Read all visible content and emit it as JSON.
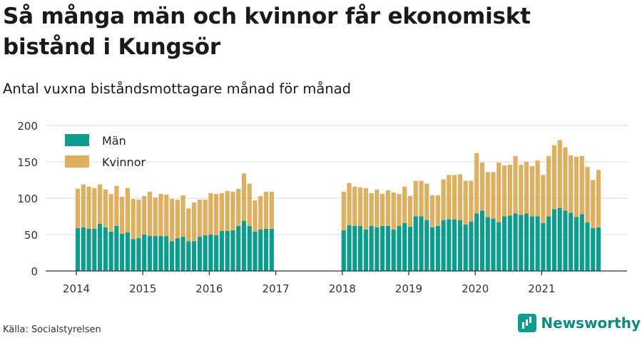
{
  "header": {
    "title": "Så många män och kvinnor får ekonomiskt bistånd i Kungsör",
    "subtitle": "Antal vuxna biståndsmottagare månad för månad"
  },
  "footer": {
    "source": "Källa: Socialstyrelsen",
    "brand": "Newsworthy"
  },
  "colors": {
    "men": "#0e9c8e",
    "women": "#ddaf5e"
  },
  "chart_data": {
    "type": "bar",
    "stacked": true,
    "x_axis": {
      "type": "month",
      "start": "2014-01",
      "end": "2021-12",
      "tick_labels": [
        "2014",
        "2015",
        "2016",
        "2017",
        "2018",
        "2019",
        "2020",
        "2021"
      ]
    },
    "ylim": [
      0,
      200
    ],
    "yticks": [
      0,
      50,
      100,
      150,
      200
    ],
    "legend": {
      "placement": "top-left"
    },
    "grid": true,
    "series": [
      {
        "name": "Män",
        "segments": [
          {
            "start": "2014-01",
            "values": [
              59,
              60,
              58,
              58,
              65,
              60,
              54,
              62,
              51,
              53,
              44,
              45,
              50,
              48,
              48,
              48,
              48,
              41,
              45,
              47,
              41,
              41,
              47,
              49,
              50,
              49,
              55,
              55,
              56,
              62,
              69,
              62,
              54,
              57,
              58,
              58
            ]
          },
          {
            "start": "2018-01",
            "values": [
              56,
              63,
              62,
              62,
              57,
              62,
              60,
              62,
              62,
              57,
              62,
              66,
              61,
              75,
              75,
              70,
              60,
              62,
              70,
              71,
              71,
              70,
              64,
              68,
              79,
              83,
              74,
              72,
              67,
              75,
              76,
              79,
              77,
              79,
              75,
              75,
              66,
              75,
              85,
              87,
              83,
              80,
              74,
              78,
              67,
              59,
              60
            ]
          }
        ]
      },
      {
        "name": "Kvinnor",
        "segments": [
          {
            "start": "2014-01",
            "values": [
              54,
              59,
              58,
              56,
              54,
              52,
              52,
              55,
              51,
              61,
              55,
              53,
              53,
              61,
              53,
              58,
              57,
              58,
              53,
              57,
              45,
              53,
              51,
              49,
              57,
              57,
              52,
              55,
              53,
              51,
              65,
              58,
              43,
              46,
              51,
              51
            ]
          },
          {
            "start": "2018-01",
            "values": [
              53,
              58,
              54,
              53,
              57,
              45,
              52,
              44,
              49,
              51,
              44,
              50,
              42,
              49,
              49,
              50,
              44,
              42,
              56,
              61,
              61,
              63,
              60,
              56,
              83,
              66,
              62,
              64,
              82,
              70,
              70,
              79,
              69,
              71,
              69,
              77,
              66,
              83,
              88,
              93,
              87,
              79,
              83,
              80,
              76,
              66,
              79
            ]
          }
        ]
      }
    ]
  }
}
